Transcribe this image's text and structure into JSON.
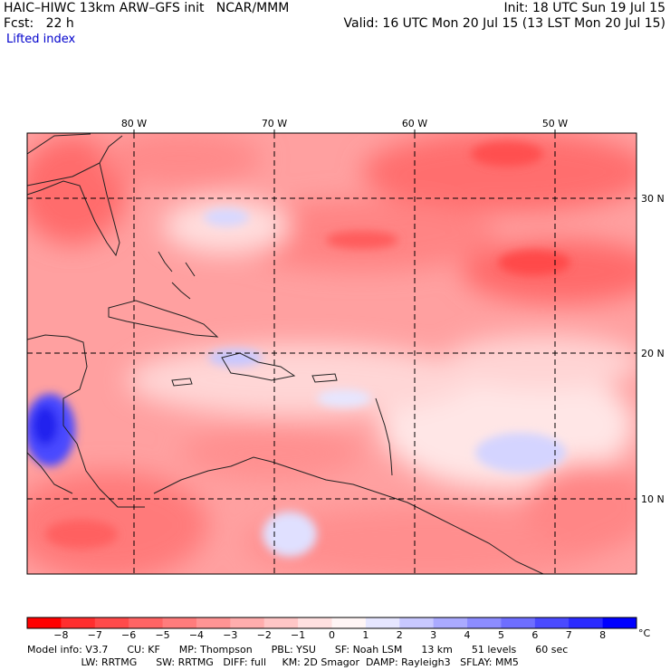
{
  "header": {
    "title": "HAIC–HIWC 13km ARW–GFS init   NCAR/MMM",
    "init": "Init: 18 UTC Sun 19 Jul 15",
    "forecast": "Fcst:   22 h",
    "valid": "Valid: 16 UTC Mon 20 Jul 15 (13 LST Mon 20 Jul 15)",
    "field": "Lifted index"
  },
  "map": {
    "longitude_labels": [
      "80 W",
      "70 W",
      "60 W",
      "50 W"
    ],
    "latitude_labels": [
      "30 N",
      "20 N",
      "10 N"
    ]
  },
  "colorbar": {
    "tick_labels": [
      "−8",
      "−7",
      "−6",
      "−5",
      "−4",
      "−3",
      "−2",
      "−1",
      "0",
      "1",
      "2",
      "3",
      "4",
      "5",
      "6",
      "7",
      "8"
    ],
    "units": "°C",
    "colors": [
      "#ff0000",
      "#ff2e2e",
      "#ff4a4a",
      "#ff6464",
      "#ff7c7c",
      "#ff9494",
      "#ffadad",
      "#ffc6c6",
      "#ffe0e0",
      "#fff5f5",
      "#e6e6ff",
      "#c8c8ff",
      "#aaaaff",
      "#8c8cff",
      "#6e6eff",
      "#4a4aff",
      "#2a2aff",
      "#0000ff"
    ]
  },
  "footer": {
    "line1": "Model info: V3.7      CU: KF      MP: Thompson      PBL: YSU      SF: Noah LSM      13 km      51 levels      60 sec",
    "line2": "                 LW: RRTMG      SW: RRTMG   DIFF: full     KM: 2D Smagor  DAMP: Rayleigh3   SFLAY: MM5"
  }
}
